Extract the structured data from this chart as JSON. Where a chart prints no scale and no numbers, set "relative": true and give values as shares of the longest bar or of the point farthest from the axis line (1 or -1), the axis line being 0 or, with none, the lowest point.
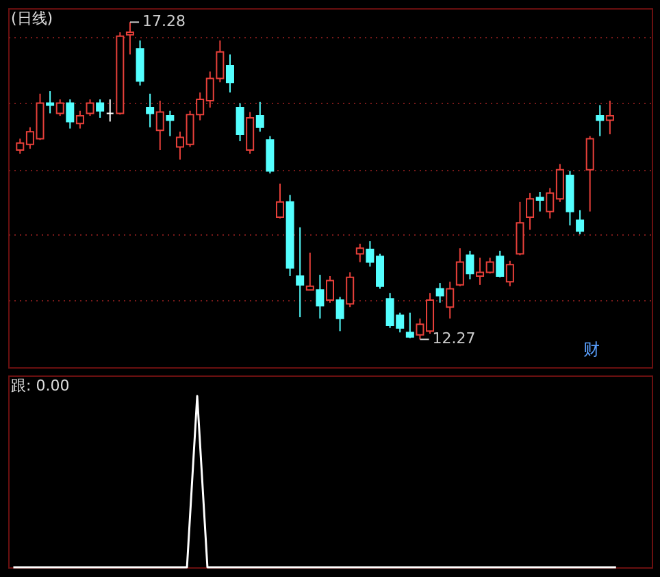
{
  "chart_data": [
    {
      "type": "candlestick",
      "title": "(日线)",
      "categories": [
        null,
        null,
        null,
        null,
        null,
        null,
        null,
        null,
        null,
        null,
        null,
        null,
        null,
        null,
        null,
        null,
        null,
        null,
        null,
        null,
        null,
        null,
        null,
        null,
        null,
        null,
        null,
        null,
        null,
        null,
        null,
        null,
        null,
        null,
        null,
        null,
        null,
        null,
        null,
        null,
        null,
        null,
        null,
        null,
        null,
        null,
        null,
        null,
        null,
        null,
        null,
        null,
        null,
        null,
        null,
        null,
        null,
        null,
        null,
        null
      ],
      "ohlc": [
        [
          15.26,
          15.44,
          15.2,
          15.37
        ],
        [
          15.35,
          15.62,
          15.28,
          15.55
        ],
        [
          15.44,
          16.15,
          15.42,
          16.0
        ],
        [
          16.0,
          16.19,
          15.84,
          15.97
        ],
        [
          15.84,
          16.06,
          15.8,
          16.0
        ],
        [
          16.0,
          16.06,
          15.6,
          15.71
        ],
        [
          15.68,
          15.88,
          15.6,
          15.8
        ],
        [
          15.84,
          16.06,
          15.8,
          16.0
        ],
        [
          16.0,
          16.06,
          15.77,
          15.88
        ],
        [
          15.84,
          16.06,
          15.71,
          15.84
        ],
        [
          15.84,
          17.12,
          15.82,
          17.06
        ],
        [
          17.08,
          17.28,
          16.77,
          17.12
        ],
        [
          16.86,
          16.99,
          16.28,
          16.35
        ],
        [
          15.93,
          16.15,
          15.62,
          15.84
        ],
        [
          15.57,
          16.04,
          15.26,
          15.86
        ],
        [
          15.8,
          15.88,
          15.48,
          15.73
        ],
        [
          15.31,
          15.55,
          15.11,
          15.46
        ],
        [
          15.35,
          15.88,
          15.31,
          15.82
        ],
        [
          15.82,
          16.17,
          15.73,
          16.06
        ],
        [
          16.04,
          16.5,
          15.93,
          16.39
        ],
        [
          16.39,
          16.99,
          16.33,
          16.81
        ],
        [
          16.59,
          16.77,
          16.17,
          16.33
        ],
        [
          15.93,
          16.0,
          15.4,
          15.51
        ],
        [
          15.26,
          15.86,
          15.2,
          15.77
        ],
        [
          15.8,
          16.02,
          15.55,
          15.62
        ],
        [
          15.42,
          15.48,
          14.89,
          14.93
        ],
        [
          14.2,
          14.73,
          14.18,
          14.44
        ],
        [
          14.44,
          14.55,
          13.27,
          13.4
        ],
        [
          13.27,
          14.04,
          12.62,
          13.13
        ],
        [
          13.05,
          13.64,
          13.05,
          13.11
        ],
        [
          13.05,
          13.29,
          12.6,
          12.8
        ],
        [
          12.89,
          13.27,
          12.85,
          13.2
        ],
        [
          12.89,
          12.94,
          12.4,
          12.6
        ],
        [
          12.83,
          13.33,
          12.78,
          13.25
        ],
        [
          13.62,
          13.78,
          13.49,
          13.71
        ],
        [
          13.69,
          13.82,
          13.42,
          13.49
        ],
        [
          13.58,
          13.62,
          13.07,
          13.11
        ],
        [
          12.91,
          13.0,
          12.45,
          12.49
        ],
        [
          12.65,
          12.69,
          12.38,
          12.45
        ],
        [
          12.38,
          12.69,
          12.29,
          12.31
        ],
        [
          12.34,
          12.6,
          12.27,
          12.51
        ],
        [
          12.4,
          13.0,
          12.36,
          12.89
        ],
        [
          13.07,
          13.16,
          12.85,
          12.96
        ],
        [
          12.78,
          13.18,
          12.6,
          13.07
        ],
        [
          13.13,
          13.71,
          13.11,
          13.49
        ],
        [
          13.6,
          13.67,
          13.22,
          13.31
        ],
        [
          13.27,
          13.56,
          13.13,
          13.33
        ],
        [
          13.33,
          13.56,
          13.31,
          13.49
        ],
        [
          13.58,
          13.67,
          13.25,
          13.27
        ],
        [
          13.18,
          13.51,
          13.11,
          13.45
        ],
        [
          13.62,
          14.44,
          13.6,
          14.11
        ],
        [
          14.2,
          14.58,
          14.0,
          14.49
        ],
        [
          14.51,
          14.6,
          14.29,
          14.47
        ],
        [
          14.29,
          14.66,
          14.18,
          14.58
        ],
        [
          14.49,
          15.04,
          14.44,
          14.95
        ],
        [
          14.86,
          14.93,
          14.07,
          14.29
        ],
        [
          14.15,
          14.31,
          13.93,
          13.98
        ],
        [
          14.95,
          15.48,
          14.29,
          15.44
        ],
        [
          15.8,
          15.97,
          15.48,
          15.73
        ],
        [
          15.73,
          16.04,
          15.51,
          15.8
        ]
      ],
      "colors": [
        "#e8403a",
        "#e8403a",
        "#e8403a",
        "#54ffff",
        "#e8403a",
        "#54ffff",
        "#e8403a",
        "#e8403a",
        "#54ffff",
        "#ffffff",
        "#e8403a",
        "#e8403a",
        "#54ffff",
        "#54ffff",
        "#e8403a",
        "#54ffff",
        "#e8403a",
        "#e8403a",
        "#e8403a",
        "#e8403a",
        "#e8403a",
        "#54ffff",
        "#54ffff",
        "#e8403a",
        "#54ffff",
        "#54ffff",
        "#e8403a",
        "#54ffff",
        "#54ffff",
        "#e8403a",
        "#54ffff",
        "#e8403a",
        "#54ffff",
        "#e8403a",
        "#e8403a",
        "#54ffff",
        "#54ffff",
        "#54ffff",
        "#54ffff",
        "#54ffff",
        "#e8403a",
        "#e8403a",
        "#54ffff",
        "#e8403a",
        "#e8403a",
        "#54ffff",
        "#e8403a",
        "#e8403a",
        "#54ffff",
        "#e8403a",
        "#e8403a",
        "#e8403a",
        "#54ffff",
        "#e8403a",
        "#e8403a",
        "#54ffff",
        "#54ffff",
        "#e8403a",
        "#54ffff",
        "#e8403a"
      ],
      "ylim": [
        11.83,
        17.5
      ],
      "yticks": [
        {
          "value": 17.04,
          "label": null
        },
        {
          "value": 16.0,
          "label": null
        },
        {
          "value": 14.95,
          "label": null
        },
        {
          "value": 13.93,
          "label": null
        },
        {
          "value": 12.89,
          "label": null
        }
      ],
      "grid": "y",
      "tick_labels": false,
      "annotations": [
        "17.28",
        "12.27",
        "财"
      ]
    },
    {
      "type": "line",
      "title": "跟: 0.00",
      "relative": true,
      "tick_labels": false,
      "line_style": "solid",
      "categories": [
        null,
        null,
        null,
        null,
        null,
        null,
        null,
        null,
        null,
        null,
        null,
        null,
        null,
        null,
        null,
        null,
        null,
        null,
        null,
        null,
        null,
        null,
        null,
        null,
        null,
        null,
        null,
        null,
        null,
        null,
        null,
        null,
        null,
        null,
        null,
        null,
        null,
        null,
        null,
        null,
        null,
        null,
        null,
        null,
        null,
        null,
        null,
        null,
        null,
        null,
        null,
        null,
        null,
        null,
        null,
        null,
        null,
        null,
        null,
        null
      ],
      "series": [
        {
          "color": "#ffffff",
          "values": [
            0,
            0,
            0,
            0,
            0,
            0,
            0,
            0,
            0,
            0,
            0,
            0,
            0,
            0,
            0,
            0,
            0,
            0,
            1,
            0,
            0,
            0,
            0,
            0,
            0,
            0,
            0,
            0,
            0,
            0,
            0,
            0,
            0,
            0,
            0,
            0,
            0,
            0,
            0,
            0,
            0,
            0,
            0,
            0,
            0,
            0,
            0,
            0,
            0,
            0,
            0,
            0,
            0,
            0,
            0,
            0,
            0,
            0,
            0,
            0
          ]
        }
      ]
    }
  ]
}
